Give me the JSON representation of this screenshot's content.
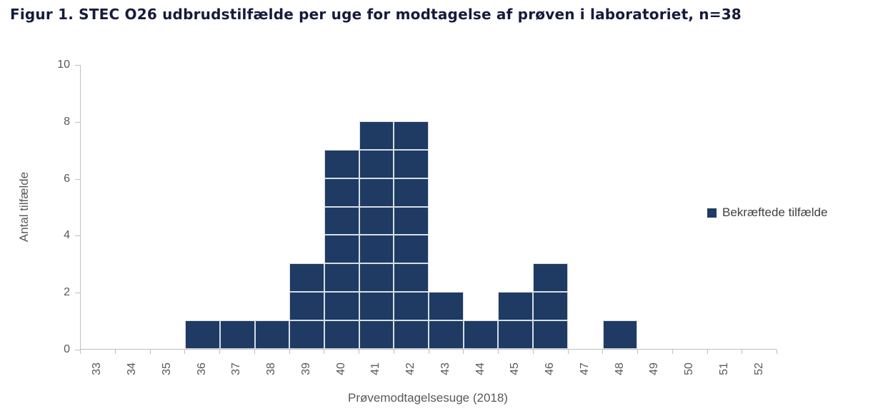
{
  "figure": {
    "title": "Figur 1. STEC O26 udbrudstilfælde per uge for modtagelse af prøven i laboratoriet, n=38"
  },
  "chart_data": {
    "type": "bar",
    "title": "Figur 1. STEC O26 udbrudstilfælde per uge for modtagelse af prøven i laboratoriet, n=38",
    "xlabel": "Prøvemodtagelsesuge (2018)",
    "ylabel": "Antal tilfælde",
    "categories": [
      "33",
      "34",
      "35",
      "36",
      "37",
      "38",
      "39",
      "40",
      "41",
      "42",
      "43",
      "44",
      "45",
      "46",
      "47",
      "48",
      "49",
      "50",
      "51",
      "52"
    ],
    "values": [
      0,
      0,
      0,
      1,
      1,
      1,
      3,
      7,
      8,
      8,
      2,
      1,
      2,
      3,
      0,
      1,
      0,
      0,
      0,
      0
    ],
    "total_n": 38,
    "ylim": [
      0,
      10
    ],
    "yticks": [
      0,
      2,
      4,
      6,
      8,
      10
    ],
    "grid": false,
    "unit_cells": true,
    "legend_position": "right",
    "legend": [
      "Bekræftede tilfælde"
    ],
    "colors": {
      "bar": "#1f3a63",
      "cell_border": "#d8dee6",
      "axis_line": "#bfbfbf",
      "tick_label": "#595959",
      "axis_title": "#595959",
      "legend_text": "#3f3f3f",
      "title_text": "#151b3b"
    }
  }
}
